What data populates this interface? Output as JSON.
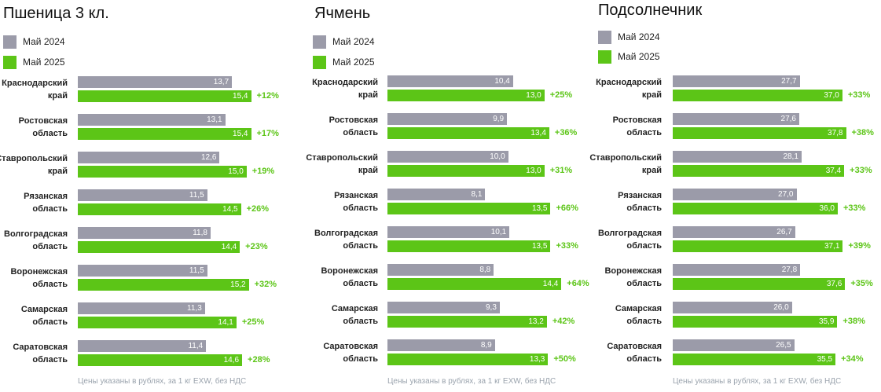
{
  "colors": {
    "may2024": "#9b9ba9",
    "may2025": "#5cc517",
    "pct": "#5cc517"
  },
  "legend": {
    "s1": "Май 2024",
    "s2": "Май 2025"
  },
  "footnote": "Цены указаны в рублях, за 1 кг EXW, без НДС",
  "chart_data": [
    {
      "type": "bar",
      "orientation": "horizontal",
      "title": "Пшеница 3 кл.",
      "categories": [
        "Краснодарский\nкрай",
        "Ростовская\nобласть",
        "Ставропольский\nкрай",
        "Рязанская\nобласть",
        "Волгоградская\nобласть",
        "Воронежская\nобласть",
        "Самарская\nобласть",
        "Саратовская\nобласть"
      ],
      "series": [
        {
          "name": "Май 2024",
          "values": [
            13.7,
            13.1,
            12.6,
            11.5,
            11.8,
            11.5,
            11.3,
            11.4
          ],
          "labels": [
            "13,7",
            "13,1",
            "12,6",
            "11,5",
            "11,8",
            "11,5",
            "11,3",
            "11,4"
          ]
        },
        {
          "name": "Май 2025",
          "values": [
            15.4,
            15.4,
            15.0,
            14.5,
            14.4,
            15.2,
            14.1,
            14.6
          ],
          "labels": [
            "15,4",
            "15,4",
            "15,0",
            "14,5",
            "14,4",
            "15,2",
            "14,1",
            "14,6"
          ]
        }
      ],
      "changes": [
        "+12%",
        "+17%",
        "+19%",
        "+26%",
        "+23%",
        "+32%",
        "+25%",
        "+28%"
      ],
      "xlim": [
        0,
        22
      ],
      "legend_position": "top-left",
      "grid": false
    },
    {
      "type": "bar",
      "orientation": "horizontal",
      "title": "Ячмень",
      "categories": [
        "Краснодарский\nкрай",
        "Ростовская\nобласть",
        "Ставропольский\nкрай",
        "Рязанская\nобласть",
        "Волгоградская\nобласть",
        "Воронежская\nобласть",
        "Самарская\nобласть",
        "Саратовская\nобласть"
      ],
      "series": [
        {
          "name": "Май 2024",
          "values": [
            10.4,
            9.9,
            10.0,
            8.1,
            10.1,
            8.8,
            9.3,
            8.9
          ],
          "labels": [
            "10,4",
            "9,9",
            "10,0",
            "8,1",
            "10,1",
            "8,8",
            "9,3",
            "8,9"
          ]
        },
        {
          "name": "Май 2025",
          "values": [
            13.0,
            13.4,
            13.0,
            13.5,
            13.5,
            14.4,
            13.2,
            13.3
          ],
          "labels": [
            "13,0",
            "13,4",
            "13,0",
            "13,5",
            "13,5",
            "14,4",
            "13,2",
            "13,3"
          ]
        }
      ],
      "changes": [
        "+25%",
        "+36%",
        "+31%",
        "+66%",
        "+33%",
        "+64%",
        "+42%",
        "+50%"
      ],
      "xlim": [
        0,
        20.5
      ],
      "legend_position": "top-left",
      "grid": false
    },
    {
      "type": "bar",
      "orientation": "horizontal",
      "title": "Подсолнечник",
      "categories": [
        "Краснодарский\nкрай",
        "Ростовская\nобласть",
        "Ставропольский\nкрай",
        "Рязанская\nобласть",
        "Волгоградская\nобласть",
        "Воронежская\nобласть",
        "Самарская\nобласть",
        "Саратовская\nобласть"
      ],
      "series": [
        {
          "name": "Май 2024",
          "values": [
            27.7,
            27.6,
            28.1,
            27.0,
            26.7,
            27.8,
            26.0,
            26.5
          ],
          "labels": [
            "27,7",
            "27,6",
            "28,1",
            "27,0",
            "26,7",
            "27,8",
            "26,0",
            "26,5"
          ]
        },
        {
          "name": "Май 2025",
          "values": [
            37.0,
            37.8,
            37.4,
            36.0,
            37.1,
            37.6,
            35.9,
            35.5
          ],
          "labels": [
            "37,0",
            "37,8",
            "37,4",
            "36,0",
            "37,1",
            "37,6",
            "35,9",
            "35,5"
          ]
        }
      ],
      "changes": [
        "+33%",
        "+38%",
        "+33%",
        "+33%",
        "+39%",
        "+35%",
        "+38%",
        "+34%"
      ],
      "xlim": [
        0,
        54
      ],
      "legend_position": "top-left",
      "grid": false
    }
  ]
}
